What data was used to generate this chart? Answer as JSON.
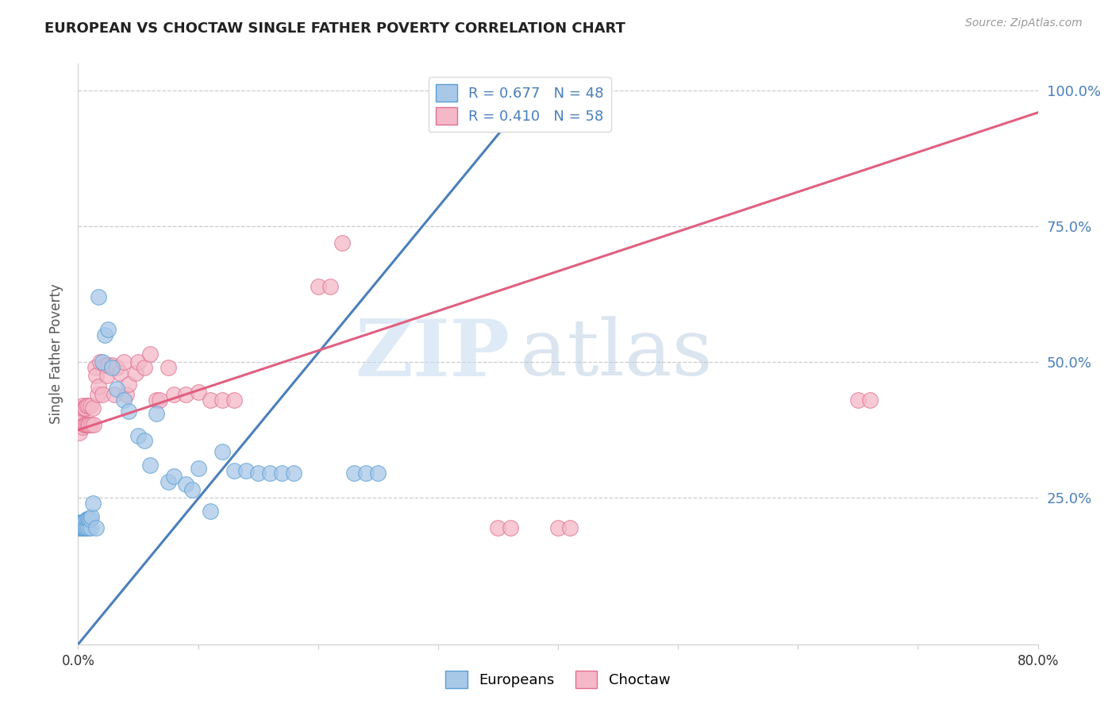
{
  "title": "EUROPEAN VS CHOCTAW SINGLE FATHER POVERTY CORRELATION CHART",
  "source": "Source: ZipAtlas.com",
  "ylabel": "Single Father Poverty",
  "watermark_zip": "ZIP",
  "watermark_atlas": "atlas",
  "legend_europeans": "Europeans",
  "legend_choctaw": "Choctaw",
  "R_european": 0.677,
  "N_european": 48,
  "R_choctaw": 0.41,
  "N_choctaw": 58,
  "color_european_fill": "#a8c8e8",
  "color_european_edge": "#5a9fd4",
  "color_choctaw_fill": "#f4b8c8",
  "color_choctaw_edge": "#e07090",
  "color_line_european": "#4a7fba",
  "color_line_choctaw": "#e06080",
  "xlim": [
    0.0,
    0.8
  ],
  "ylim": [
    -0.02,
    1.05
  ],
  "eu_line_x0": 0.0,
  "eu_line_y0": -0.02,
  "eu_line_x1": 0.38,
  "eu_line_y1": 1.0,
  "ch_line_x0": 0.0,
  "ch_line_y0": 0.375,
  "ch_line_x1": 0.8,
  "ch_line_y1": 0.96,
  "european_x": [
    0.001,
    0.002,
    0.002,
    0.003,
    0.003,
    0.004,
    0.004,
    0.005,
    0.005,
    0.006,
    0.007,
    0.007,
    0.008,
    0.008,
    0.009,
    0.01,
    0.01,
    0.011,
    0.012,
    0.015,
    0.017,
    0.02,
    0.022,
    0.025,
    0.028,
    0.032,
    0.038,
    0.042,
    0.05,
    0.055,
    0.06,
    0.065,
    0.075,
    0.08,
    0.09,
    0.095,
    0.1,
    0.11,
    0.12,
    0.13,
    0.14,
    0.15,
    0.16,
    0.17,
    0.18,
    0.23,
    0.24,
    0.25
  ],
  "european_y": [
    0.195,
    0.195,
    0.205,
    0.195,
    0.205,
    0.195,
    0.205,
    0.195,
    0.205,
    0.195,
    0.195,
    0.21,
    0.195,
    0.21,
    0.21,
    0.195,
    0.21,
    0.215,
    0.24,
    0.195,
    0.62,
    0.5,
    0.55,
    0.56,
    0.49,
    0.45,
    0.43,
    0.41,
    0.365,
    0.355,
    0.31,
    0.405,
    0.28,
    0.29,
    0.275,
    0.265,
    0.305,
    0.225,
    0.335,
    0.3,
    0.3,
    0.295,
    0.295,
    0.295,
    0.295,
    0.295,
    0.295,
    0.295
  ],
  "choctaw_x": [
    0.001,
    0.002,
    0.002,
    0.003,
    0.003,
    0.004,
    0.004,
    0.005,
    0.005,
    0.006,
    0.006,
    0.007,
    0.007,
    0.008,
    0.008,
    0.009,
    0.01,
    0.011,
    0.012,
    0.013,
    0.014,
    0.015,
    0.016,
    0.017,
    0.018,
    0.02,
    0.022,
    0.024,
    0.025,
    0.028,
    0.03,
    0.032,
    0.035,
    0.038,
    0.04,
    0.042,
    0.048,
    0.05,
    0.055,
    0.06,
    0.065,
    0.068,
    0.075,
    0.08,
    0.09,
    0.1,
    0.11,
    0.12,
    0.13,
    0.2,
    0.21,
    0.22,
    0.35,
    0.36,
    0.4,
    0.41,
    0.65,
    0.66
  ],
  "choctaw_y": [
    0.37,
    0.395,
    0.415,
    0.395,
    0.415,
    0.38,
    0.42,
    0.385,
    0.415,
    0.385,
    0.415,
    0.385,
    0.42,
    0.385,
    0.42,
    0.385,
    0.42,
    0.385,
    0.415,
    0.385,
    0.49,
    0.475,
    0.44,
    0.455,
    0.5,
    0.44,
    0.495,
    0.475,
    0.495,
    0.495,
    0.44,
    0.49,
    0.48,
    0.5,
    0.44,
    0.46,
    0.48,
    0.5,
    0.49,
    0.515,
    0.43,
    0.43,
    0.49,
    0.44,
    0.44,
    0.445,
    0.43,
    0.43,
    0.43,
    0.64,
    0.64,
    0.72,
    0.195,
    0.195,
    0.195,
    0.195,
    0.43,
    0.43
  ]
}
